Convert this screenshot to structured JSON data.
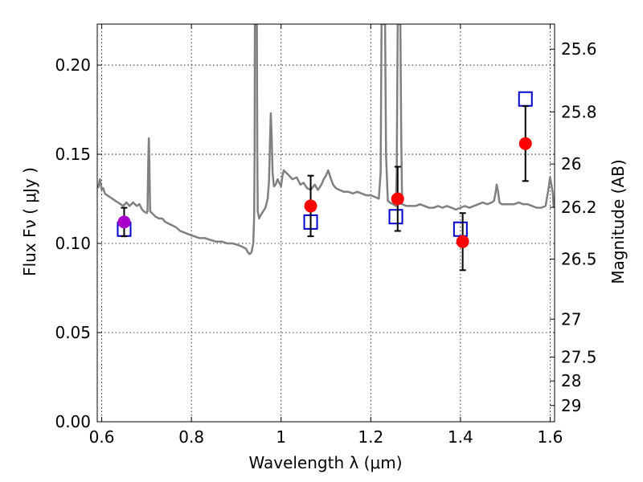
{
  "chart_data": {
    "type": "scatter",
    "xlabel": "Wavelength  λ (μm)",
    "ylabel": "Flux  Fν  ( μJy )",
    "ylabel_right": "Magnitude (AB)",
    "xlim": [
      0.59,
      1.61
    ],
    "ylim": [
      0.0,
      0.223
    ],
    "grid": true,
    "x_ticks": [
      {
        "value": 0.6,
        "label": "0.6"
      },
      {
        "value": 0.8,
        "label": "0.8"
      },
      {
        "value": 1.0,
        "label": "1"
      },
      {
        "value": 1.2,
        "label": "1.2"
      },
      {
        "value": 1.4,
        "label": "1.4"
      },
      {
        "value": 1.6,
        "label": "1.6"
      }
    ],
    "y_ticks": [
      {
        "value": 0.0,
        "label": "0.00"
      },
      {
        "value": 0.05,
        "label": "0.05"
      },
      {
        "value": 0.1,
        "label": "0.10"
      },
      {
        "value": 0.15,
        "label": "0.15"
      },
      {
        "value": 0.2,
        "label": "0.20"
      }
    ],
    "mag_ticks": [
      {
        "value": 25.6,
        "label": "25.6"
      },
      {
        "value": 25.8,
        "label": "25.8"
      },
      {
        "value": 26.0,
        "label": "26"
      },
      {
        "value": 26.2,
        "label": "26.2"
      },
      {
        "value": 26.5,
        "label": "26.5"
      },
      {
        "value": 27.0,
        "label": "27"
      },
      {
        "value": 27.5,
        "label": "27.5"
      },
      {
        "value": 28.0,
        "label": "28"
      },
      {
        "value": 29.0,
        "label": "29"
      }
    ],
    "series": [
      {
        "kind": "spectrum",
        "color": "#808080",
        "points": [
          [
            0.592,
            0.131
          ],
          [
            0.596,
            0.136
          ],
          [
            0.6,
            0.13
          ],
          [
            0.603,
            0.131
          ],
          [
            0.607,
            0.128
          ],
          [
            0.612,
            0.127
          ],
          [
            0.618,
            0.126
          ],
          [
            0.624,
            0.125
          ],
          [
            0.63,
            0.124
          ],
          [
            0.636,
            0.123
          ],
          [
            0.642,
            0.122
          ],
          [
            0.648,
            0.121
          ],
          [
            0.655,
            0.123
          ],
          [
            0.662,
            0.121
          ],
          [
            0.67,
            0.123
          ],
          [
            0.678,
            0.121
          ],
          [
            0.684,
            0.122
          ],
          [
            0.69,
            0.119
          ],
          [
            0.694,
            0.118
          ],
          [
            0.7,
            0.117
          ],
          [
            0.702,
            0.118
          ],
          [
            0.704,
            0.15
          ],
          [
            0.705,
            0.159
          ],
          [
            0.706,
            0.15
          ],
          [
            0.708,
            0.118
          ],
          [
            0.712,
            0.117
          ],
          [
            0.72,
            0.115
          ],
          [
            0.728,
            0.114
          ],
          [
            0.735,
            0.114
          ],
          [
            0.742,
            0.112
          ],
          [
            0.75,
            0.111
          ],
          [
            0.758,
            0.11
          ],
          [
            0.766,
            0.109
          ],
          [
            0.775,
            0.107
          ],
          [
            0.785,
            0.106
          ],
          [
            0.795,
            0.105
          ],
          [
            0.806,
            0.104
          ],
          [
            0.818,
            0.103
          ],
          [
            0.83,
            0.103
          ],
          [
            0.842,
            0.102
          ],
          [
            0.855,
            0.101
          ],
          [
            0.868,
            0.101
          ],
          [
            0.88,
            0.1
          ],
          [
            0.892,
            0.1
          ],
          [
            0.905,
            0.099
          ],
          [
            0.915,
            0.098
          ],
          [
            0.922,
            0.097
          ],
          [
            0.926,
            0.095
          ],
          [
            0.93,
            0.094
          ],
          [
            0.934,
            0.095
          ],
          [
            0.938,
            0.1
          ],
          [
            0.94,
            0.115
          ],
          [
            0.941,
            0.15
          ],
          [
            0.9415,
            0.223
          ],
          [
            0.946,
            0.223
          ],
          [
            0.947,
            0.15
          ],
          [
            0.948,
            0.118
          ],
          [
            0.951,
            0.114
          ],
          [
            0.955,
            0.116
          ],
          [
            0.96,
            0.118
          ],
          [
            0.965,
            0.12
          ],
          [
            0.97,
            0.125
          ],
          [
            0.973,
            0.135
          ],
          [
            0.975,
            0.155
          ],
          [
            0.977,
            0.173
          ],
          [
            0.979,
            0.16
          ],
          [
            0.981,
            0.14
          ],
          [
            0.984,
            0.132
          ],
          [
            0.988,
            0.133
          ],
          [
            0.992,
            0.136
          ],
          [
            0.996,
            0.134
          ],
          [
            1.0,
            0.132
          ],
          [
            1.003,
            0.138
          ],
          [
            1.006,
            0.141
          ],
          [
            1.01,
            0.14
          ],
          [
            1.018,
            0.138
          ],
          [
            1.025,
            0.136
          ],
          [
            1.035,
            0.137
          ],
          [
            1.043,
            0.133
          ],
          [
            1.05,
            0.134
          ],
          [
            1.058,
            0.131
          ],
          [
            1.066,
            0.13
          ],
          [
            1.075,
            0.133
          ],
          [
            1.082,
            0.13
          ],
          [
            1.09,
            0.133
          ],
          [
            1.095,
            0.136
          ],
          [
            1.1,
            0.138
          ],
          [
            1.105,
            0.141
          ],
          [
            1.11,
            0.137
          ],
          [
            1.116,
            0.133
          ],
          [
            1.122,
            0.131
          ],
          [
            1.13,
            0.13
          ],
          [
            1.14,
            0.129
          ],
          [
            1.15,
            0.129
          ],
          [
            1.16,
            0.128
          ],
          [
            1.17,
            0.129
          ],
          [
            1.18,
            0.128
          ],
          [
            1.19,
            0.127
          ],
          [
            1.2,
            0.127
          ],
          [
            1.21,
            0.126
          ],
          [
            1.218,
            0.125
          ],
          [
            1.222,
            0.14
          ],
          [
            1.224,
            0.223
          ],
          [
            1.232,
            0.223
          ],
          [
            1.234,
            0.15
          ],
          [
            1.238,
            0.124
          ],
          [
            1.242,
            0.123
          ],
          [
            1.25,
            0.122
          ],
          [
            1.256,
            0.121
          ],
          [
            1.258,
            0.14
          ],
          [
            1.26,
            0.223
          ],
          [
            1.266,
            0.223
          ],
          [
            1.268,
            0.16
          ],
          [
            1.27,
            0.122
          ],
          [
            1.28,
            0.121
          ],
          [
            1.29,
            0.121
          ],
          [
            1.3,
            0.121
          ],
          [
            1.31,
            0.122
          ],
          [
            1.32,
            0.121
          ],
          [
            1.33,
            0.12
          ],
          [
            1.34,
            0.12
          ],
          [
            1.35,
            0.121
          ],
          [
            1.36,
            0.12
          ],
          [
            1.37,
            0.121
          ],
          [
            1.38,
            0.12
          ],
          [
            1.39,
            0.119
          ],
          [
            1.4,
            0.12
          ],
          [
            1.41,
            0.121
          ],
          [
            1.42,
            0.12
          ],
          [
            1.43,
            0.121
          ],
          [
            1.44,
            0.122
          ],
          [
            1.45,
            0.123
          ],
          [
            1.46,
            0.122
          ],
          [
            1.47,
            0.123
          ],
          [
            1.475,
            0.124
          ],
          [
            1.478,
            0.128
          ],
          [
            1.481,
            0.133
          ],
          [
            1.484,
            0.129
          ],
          [
            1.487,
            0.123
          ],
          [
            1.492,
            0.122
          ],
          [
            1.5,
            0.122
          ],
          [
            1.51,
            0.122
          ],
          [
            1.52,
            0.122
          ],
          [
            1.53,
            0.123
          ],
          [
            1.54,
            0.122
          ],
          [
            1.55,
            0.122
          ],
          [
            1.56,
            0.121
          ],
          [
            1.57,
            0.12
          ],
          [
            1.58,
            0.12
          ],
          [
            1.59,
            0.121
          ],
          [
            1.596,
            0.13
          ],
          [
            1.6,
            0.137
          ],
          [
            1.603,
            0.133
          ],
          [
            1.606,
            0.128
          ],
          [
            1.608,
            0.12
          ]
        ]
      },
      {
        "kind": "model-photometry",
        "marker": "open-square",
        "color": "#0000cc",
        "points": [
          [
            0.65,
            0.108
          ],
          [
            1.066,
            0.112
          ],
          [
            1.256,
            0.115
          ],
          [
            1.4,
            0.108
          ],
          [
            1.545,
            0.181
          ]
        ]
      },
      {
        "kind": "observed-photometry",
        "marker": "filled-circle",
        "color": "#ff0000",
        "points": [
          {
            "x": 1.066,
            "y": 0.121,
            "err": 0.017
          },
          {
            "x": 1.26,
            "y": 0.125,
            "err": 0.018
          },
          {
            "x": 1.405,
            "y": 0.101,
            "err": 0.016
          },
          {
            "x": 1.545,
            "y": 0.156,
            "err": 0.021
          }
        ]
      },
      {
        "kind": "observed-photometry-optical",
        "marker": "filled-circle",
        "color": "#aa00cc",
        "points": [
          {
            "x": 0.65,
            "y": 0.112,
            "err": 0.008
          }
        ]
      }
    ]
  }
}
